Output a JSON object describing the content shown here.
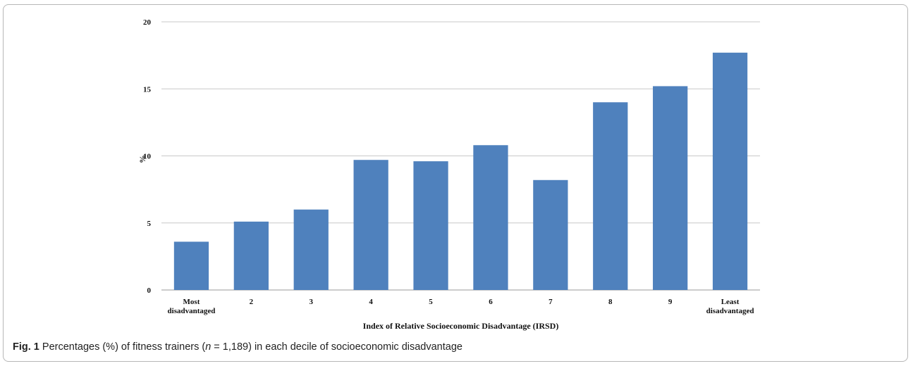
{
  "chart_data": {
    "type": "bar",
    "categories": [
      "Most\ndisadvantaged",
      "2",
      "3",
      "4",
      "5",
      "6",
      "7",
      "8",
      "9",
      "Least\ndisadvantaged"
    ],
    "values": [
      3.6,
      5.1,
      6.0,
      9.7,
      9.6,
      10.8,
      8.2,
      14.0,
      15.2,
      17.7
    ],
    "xlabel": "Index of Relative Socioeconomic Disadvantage (IRSD)",
    "ylabel": "%",
    "ylim": [
      0,
      20
    ],
    "yticks": [
      0,
      5,
      10,
      15,
      20
    ],
    "grid": true,
    "bar_color": "#4f81bd",
    "grid_color": "#c8c8c8"
  },
  "caption": {
    "label": "Fig. 1",
    "text_before": " Percentages (%) of fitness trainers (",
    "n_symbol": "n",
    "text_after": " = 1,189) in each decile of socioeconomic disadvantage"
  }
}
